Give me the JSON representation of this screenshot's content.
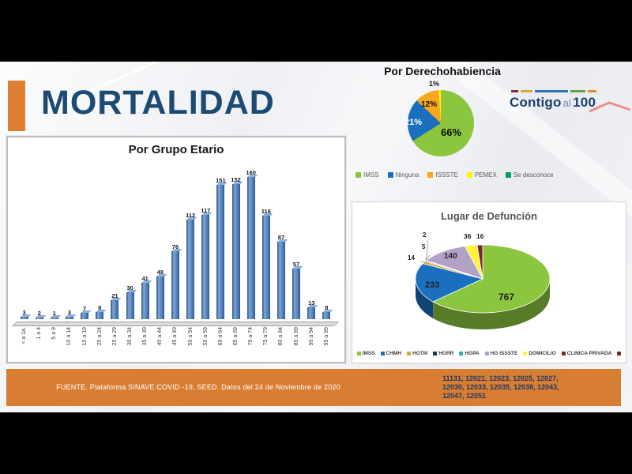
{
  "header": {
    "title": "MORTALIDAD"
  },
  "logo": {
    "word1": "Contigo",
    "word2": "al",
    "word3": "100"
  },
  "footer": {
    "source": "FUENTE. Plataforma SINAVE COVID -19, SEED. Datos del 24 de Noviembre de 2020",
    "codes": [
      "11131, 12021, 12023, 12025, 12027,",
      "12030, 12033, 12035, 12038, 12043,",
      "12047, 12051"
    ]
  },
  "colors": {
    "accent_orange": "#dd7e33",
    "title_navy": "#1d4a73",
    "codes_navy": "#1f3864",
    "bar_blue": "#4f81bd"
  },
  "chart_data": [
    {
      "type": "bar",
      "title": "Por Grupo Etario",
      "categories": [
        "< a 1a.",
        "1 a 4",
        "5 a 9",
        "10 a 14",
        "15 a 19",
        "20 a 24",
        "25 a 29",
        "30 a 34",
        "35 a 39",
        "40 a 44",
        "45 a 49",
        "50 a 54",
        "55 a 59",
        "60 a 64",
        "65 a 69",
        "70 a 74",
        "75 a 79",
        "80 a 84",
        "85 a 89",
        "90 a 94",
        "95 a 99"
      ],
      "values": [
        3,
        2,
        1,
        3,
        7,
        8,
        21,
        30,
        41,
        48,
        76,
        112,
        117,
        151,
        152,
        160,
        116,
        87,
        57,
        13,
        8
      ],
      "xlabel": "",
      "ylabel": "",
      "ylim": [
        0,
        160
      ],
      "bar_color": "#4f81bd",
      "grid": false,
      "legend": "none",
      "style": "3d-column"
    },
    {
      "type": "pie",
      "title": "Por Derechohabiencia",
      "labels": [
        "IMSS",
        "Ninguna",
        "ISSSTE",
        "PEMEX",
        "Se desconoce"
      ],
      "values": [
        66,
        21,
        12,
        1,
        0
      ],
      "value_labels": [
        "66%",
        "21%",
        "12%",
        "1%"
      ],
      "unit": "percent",
      "colors": [
        "#8cc63e",
        "#1b6fbf",
        "#f5a71d",
        "#fff200",
        "#00a160"
      ],
      "legend_position": "bottom"
    },
    {
      "type": "pie",
      "title": "Lugar de Defunción",
      "style": "3d",
      "labels": [
        "IMSS",
        "CHMH",
        "HGTM",
        "HGRR",
        "HGPA",
        "HG ISSSTE",
        "DOMICILIO",
        "CLINICA PRIVADA"
      ],
      "values": [
        767,
        233,
        14,
        5,
        2,
        140,
        36,
        16
      ],
      "colors": [
        "#8cc63e",
        "#1b6fbf",
        "#d9a440",
        "#17375e",
        "#2ab3b8",
        "#b2a1c7",
        "#fff23a",
        "#7a2a25"
      ],
      "legend_position": "bottom"
    }
  ]
}
